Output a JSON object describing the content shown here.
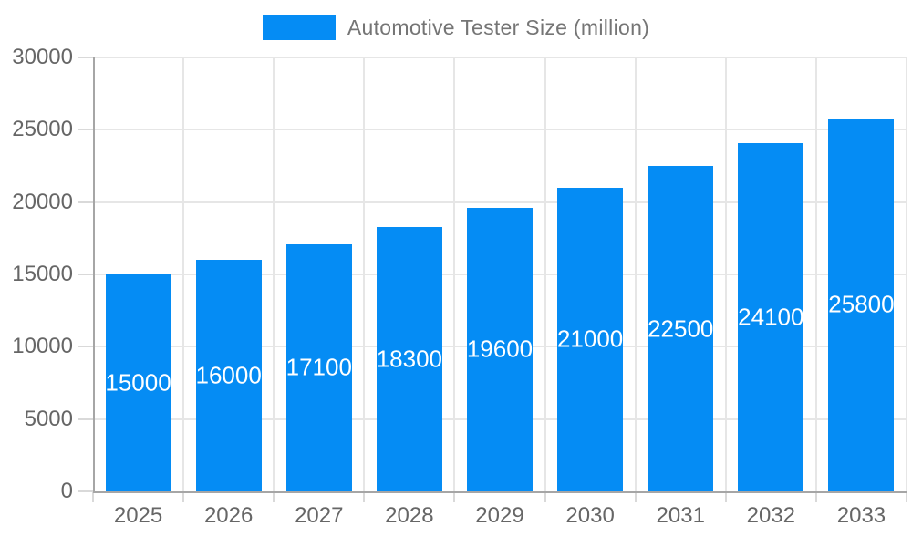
{
  "chart_data": {
    "type": "bar",
    "title": "",
    "legend": {
      "label": "Automotive Tester Size (million)",
      "position": "top-center"
    },
    "categories": [
      "2025",
      "2026",
      "2027",
      "2028",
      "2029",
      "2030",
      "2031",
      "2032",
      "2033"
    ],
    "series": [
      {
        "name": "Automotive Tester Size (million)",
        "values": [
          15000,
          16000,
          17100,
          18300,
          19600,
          21000,
          22500,
          24100,
          25800
        ]
      }
    ],
    "value_labels": [
      "15000",
      "16000",
      "17100",
      "18300",
      "19600",
      "21000",
      "22500",
      "24100",
      "25800"
    ],
    "ylim": [
      0,
      30000
    ],
    "ytick_step": 5000,
    "ytick_labels": [
      "0",
      "5000",
      "10000",
      "15000",
      "20000",
      "25000",
      "30000"
    ],
    "grid": true,
    "value_labels_visible": true,
    "colors": {
      "bar": "#058CF4",
      "grid": "#e6e6e6",
      "tick": "#d9d9d9",
      "axis": "#a6a6a6",
      "label_text": "#666666",
      "legend_text": "#757575",
      "value_label_text": "#ffffff",
      "background": "#ffffff"
    }
  }
}
